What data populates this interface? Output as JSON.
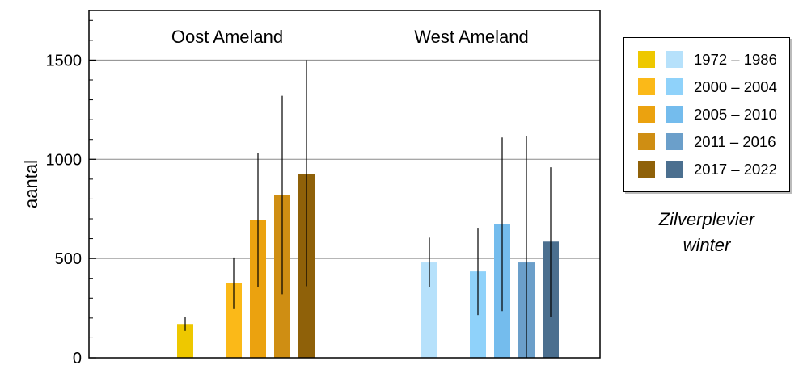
{
  "chart_data": {
    "type": "bar",
    "ylabel": "aantal",
    "xlabel": "",
    "ylim": [
      0,
      1750
    ],
    "yticks": [
      0,
      500,
      1000,
      1500
    ],
    "minor_tick_step": 100,
    "grid": "horizontal at major ticks",
    "group_labels": [
      "Oost Ameland",
      "West Ameland"
    ],
    "periods": [
      "1972 – 1986",
      "2000 – 2004",
      "2005 – 2010",
      "2011 – 2016",
      "2017 – 2022"
    ],
    "groups": [
      {
        "name": "Oost Ameland",
        "colors": [
          "#eec800",
          "#fbb918",
          "#eba20f",
          "#cf8e13",
          "#8f6109"
        ],
        "values": [
          170,
          375,
          695,
          820,
          925
        ],
        "err_low": [
          135,
          245,
          355,
          320,
          360
        ],
        "err_high": [
          205,
          505,
          1030,
          1320,
          1500
        ]
      },
      {
        "name": "West Ameland",
        "colors": [
          "#b6e1fb",
          "#8fd2fa",
          "#74bced",
          "#6b9fca",
          "#4b6f8f"
        ],
        "values": [
          480,
          435,
          675,
          480,
          585
        ],
        "err_low": [
          355,
          215,
          235,
          0,
          205
        ],
        "err_high": [
          605,
          655,
          1110,
          1115,
          960
        ]
      }
    ],
    "legend_position": "right",
    "annotation": [
      "Zilverplevier",
      "winter"
    ]
  }
}
